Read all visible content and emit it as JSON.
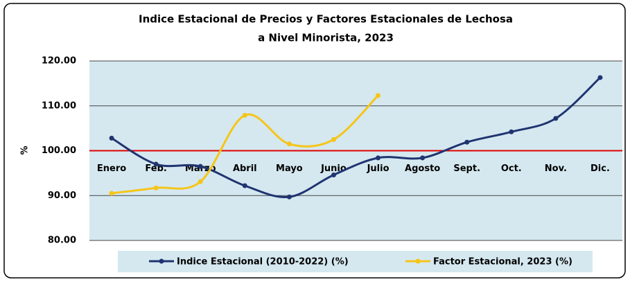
{
  "chart_data": {
    "type": "line",
    "title": [
      "Indice Estacional de Precios y Factores Estacionales de Lechosa",
      "a Nivel Minorista, 2023"
    ],
    "ylabel": "%",
    "categories": [
      "Enero",
      "Feb.",
      "Marzo",
      "Abril",
      "Mayo",
      "Junio",
      "Julio",
      "Agosto",
      "Sept.",
      "Oct.",
      "Nov.",
      "Dic."
    ],
    "series": [
      {
        "name": "Indice Estacional (2010-2022) (%)",
        "color": "#1f3470",
        "values": [
          102.8,
          97.0,
          96.5,
          92.2,
          89.7,
          94.6,
          98.4,
          98.4,
          101.9,
          104.2,
          107.2,
          116.3
        ]
      },
      {
        "name": "Factor Estacional, 2023 (%)",
        "color": "#f5c518",
        "values": [
          90.5,
          91.7,
          93.1,
          107.9,
          101.5,
          102.5,
          112.3,
          null,
          null,
          null,
          null,
          null
        ]
      }
    ],
    "ylim": [
      80,
      120
    ],
    "yticks": [
      {
        "value": 80,
        "label": "80.00"
      },
      {
        "value": 90,
        "label": "90.00"
      },
      {
        "value": 100,
        "label": "100.00"
      },
      {
        "value": 110,
        "label": "110.00"
      },
      {
        "value": 120,
        "label": "120.00"
      }
    ],
    "grid": true,
    "reference_line": {
      "value": 100,
      "color": "#e00000"
    },
    "legend": "bottom"
  }
}
